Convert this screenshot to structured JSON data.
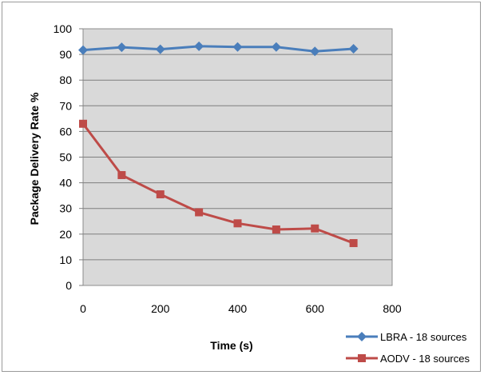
{
  "chart_data": {
    "type": "line",
    "title": "",
    "xlabel": "Time (s)",
    "ylabel": "Package Delivery Rate %",
    "xlim": [
      0,
      800
    ],
    "ylim": [
      0,
      100
    ],
    "xticks": [
      0,
      200,
      400,
      600,
      800
    ],
    "yticks": [
      0,
      10,
      20,
      30,
      40,
      50,
      60,
      70,
      80,
      90,
      100
    ],
    "grid": "horizontal",
    "plot_background": "#d9d9d9",
    "legend_position": "bottom-right",
    "x": [
      0,
      100,
      200,
      300,
      400,
      500,
      600,
      700
    ],
    "series": [
      {
        "name": "LBRA - 18 sources",
        "color": "#4a7ebb",
        "marker": "diamond",
        "values": [
          91.7,
          92.8,
          92.0,
          93.2,
          92.9,
          92.9,
          91.2,
          92.2
        ]
      },
      {
        "name": "AODV - 18 sources",
        "color": "#be4b48",
        "marker": "square",
        "values": [
          63.0,
          43.0,
          35.5,
          28.5,
          24.2,
          21.8,
          22.2,
          16.5
        ]
      }
    ]
  }
}
